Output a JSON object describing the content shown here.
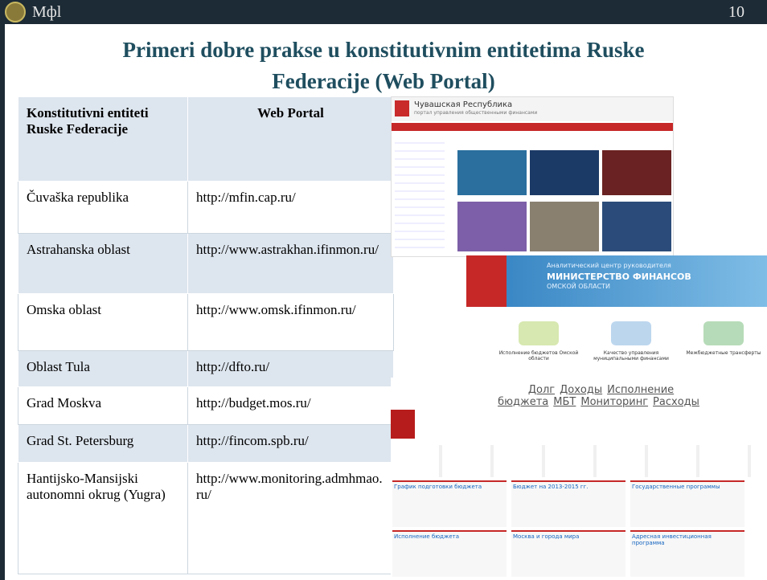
{
  "header": {
    "logo_text": "Mфl",
    "page_number": "10"
  },
  "title": {
    "line1": "Primeri dobre prakse u konstitutivnim entitetima Ruske",
    "line2": "Federacije (Web Portal)"
  },
  "table": {
    "headers": [
      "Konstitutivni entiteti Ruske Federacije",
      "Web Portal"
    ],
    "rows": [
      [
        "Čuvaška republika",
        "http://mfin.cap.ru/"
      ],
      [
        "Astrahanska oblast",
        "http://www.astrakhan.ifinmon.ru/"
      ],
      [
        "Omska oblast",
        "http://www.omsk.ifinmon.ru/"
      ],
      [
        "Oblast Tula",
        "http://dfto.ru/"
      ],
      [
        "Grad Moskva",
        "http://budget.mos.ru/"
      ],
      [
        "Grad  St. Petersburg",
        "http://fincom.spb.ru/"
      ],
      [
        "Hantijsko-Mansijski autonomni okrug (Yugra)",
        "http://www.monitoring.admhmao.ru/"
      ]
    ]
  },
  "screenshots": {
    "chuvash": {
      "title": "Чувашская Республика",
      "subtitle": "портал управления общественными финансами"
    },
    "omsk": {
      "line1": "Аналитический центр руководителя",
      "line2": "МИНИСТЕРСТВО ФИНАНСОВ",
      "line3": "ОМСКОЙ ОБЛАСТИ",
      "tiles": [
        "Исполнение бюджетов Омской области",
        "Качество управления муниципальными финансами",
        "Межбюджетные трансферты"
      ]
    },
    "moscow": {
      "tags": [
        "Долг",
        "Доходы",
        "Исполнение бюджета",
        "МБТ",
        "Мониторинг",
        "Расходы"
      ],
      "panels": [
        "График подготовки бюджета",
        "Бюджет на 2013-2015 гг.",
        "Государственные программы",
        "Исполнение бюджета",
        "Москва и города мира",
        "Адресная инвестиционная программа"
      ]
    }
  }
}
